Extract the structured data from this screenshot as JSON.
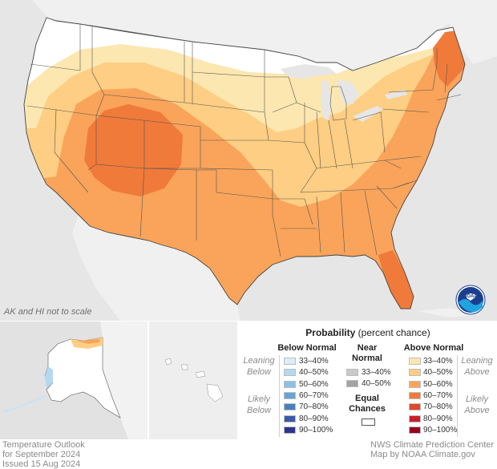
{
  "map": {
    "note": "AK and HI not to scale",
    "logo_icon": "noaa-logo",
    "colors": {
      "background": "#e6e6e6",
      "nonpainted_land": "#ffffff",
      "cat_33_40": "#fde7b0",
      "cat_40_50": "#fdce83",
      "cat_50_60": "#f9a45a",
      "cat_60_70": "#f07a3a",
      "cat_70_80": "#e0472b"
    }
  },
  "legend": {
    "title": "Probability",
    "title_suffix": "(percent chance)",
    "below_header": "Below Normal",
    "near_header_1": "Near",
    "near_header_2": "Normal",
    "above_header": "Above Normal",
    "leaning_below_1": "Leaning",
    "leaning_below_2": "Below",
    "likely_below_1": "Likely",
    "likely_below_2": "Below",
    "leaning_above_1": "Leaning",
    "leaning_above_2": "Above",
    "likely_above_1": "Likely",
    "likely_above_2": "Above",
    "equal_1": "Equal",
    "equal_2": "Chances",
    "below": [
      {
        "label": "33–40%",
        "color": "#d9eef9"
      },
      {
        "label": "40–50%",
        "color": "#b3d9f0"
      },
      {
        "label": "50–60%",
        "color": "#8cc1e3"
      },
      {
        "label": "60–70%",
        "color": "#67a3d3"
      },
      {
        "label": "70–80%",
        "color": "#4a7fbf"
      },
      {
        "label": "80–90%",
        "color": "#3a59a9"
      },
      {
        "label": "90–100%",
        "color": "#2b3590"
      }
    ],
    "near": [
      {
        "label": "33–40%",
        "color": "#c9c9c9"
      },
      {
        "label": "40–50%",
        "color": "#a3a3a3"
      }
    ],
    "above": [
      {
        "label": "33–40%",
        "color": "#fde7b0"
      },
      {
        "label": "40–50%",
        "color": "#fdce83"
      },
      {
        "label": "50–60%",
        "color": "#f9a45a"
      },
      {
        "label": "60–70%",
        "color": "#f07a3a"
      },
      {
        "label": "70–80%",
        "color": "#e0472b"
      },
      {
        "label": "80–90%",
        "color": "#c8202a"
      },
      {
        "label": "90–100%",
        "color": "#97001f"
      }
    ]
  },
  "footer": {
    "left_1": "Temperature Outlook",
    "left_2": "for September 2024",
    "left_3": "Issued 15 Aug 2024",
    "right_1": "NWS Climate Prediction Center",
    "right_2": "Map by NOAA Climate.gov"
  }
}
